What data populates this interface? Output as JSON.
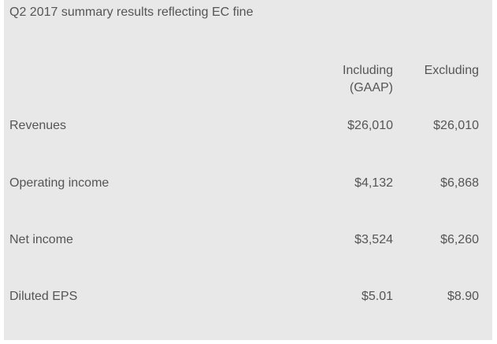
{
  "title": "Q2 2017 summary results reflecting EC fine",
  "columns": [
    "Including (GAAP)",
    "Excluding"
  ],
  "column_lines": [
    [
      "Including",
      "(GAAP)"
    ],
    [
      "Excluding"
    ]
  ],
  "rows": [
    {
      "label": "Revenues",
      "including": "$26,010",
      "excluding": "$26,010"
    },
    {
      "label": "Operating income",
      "including": "$4,132",
      "excluding": "$6,868"
    },
    {
      "label": "Net income",
      "including": "$3,524",
      "excluding": "$6,260"
    },
    {
      "label": "Diluted EPS",
      "including": "$5.01",
      "excluding": "$8.90"
    }
  ]
}
